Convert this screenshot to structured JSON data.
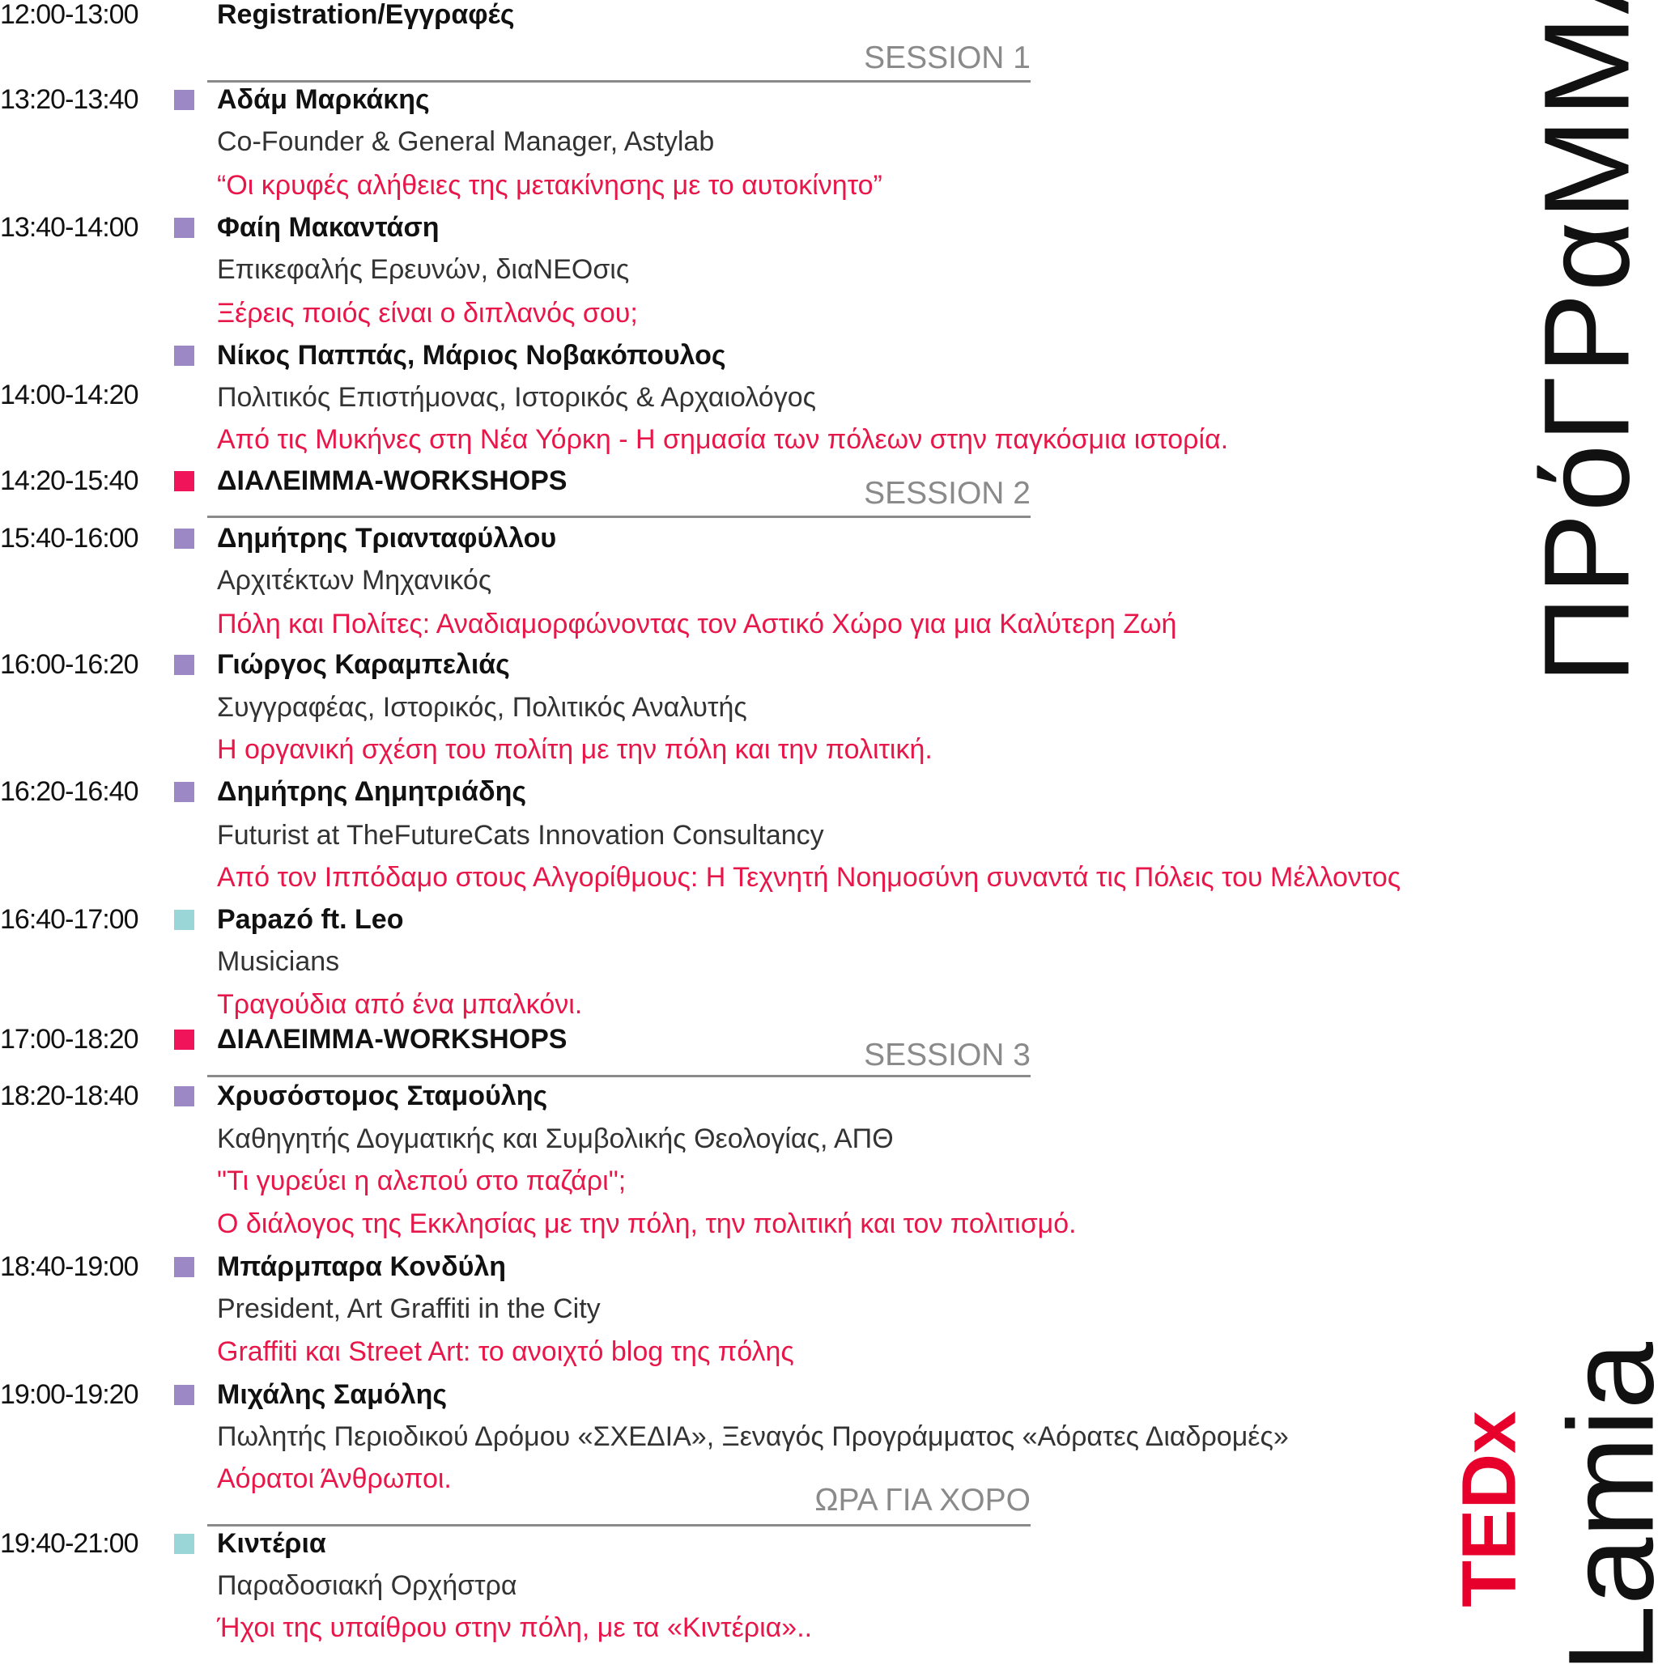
{
  "title": "ΠΡόΓΡαΜΜΑ",
  "logo": {
    "ted": "TEDx",
    "city": "Lamia"
  },
  "colors": {
    "speaker": "#9b88c4",
    "break": "#f0145a",
    "music": "#9ad6d8",
    "talk": "#e8174a"
  },
  "sessions": [
    "SESSION 1",
    "SESSION 2",
    "SESSION 3",
    "ΩΡΑ ΓΙΑ ΧΟΡΟ"
  ],
  "items": [
    {
      "time": "12:00-13:00",
      "name": "Registration/Εγγραφές"
    },
    {
      "time": "13:20-13:40",
      "name": "Αδάμ Μαρκάκης",
      "role": "Co-Founder & General Manager, Astylab",
      "talk": "“Οι κρυφές αλήθειες της μετακίνησης με το αυτοκίνητο”"
    },
    {
      "time": "13:40-14:00",
      "name": "Φαίη Μακαντάση",
      "role": "Επικεφαλής Ερευνών, διαΝΕΟσις",
      "talk": "Ξέρεις ποιός είναι ο διπλανός σου;"
    },
    {
      "time": "14:00-14:20",
      "name": "Νίκος Παππάς, Μάριος Νοβακόπουλος",
      "role": "Πολιτικός Επιστήμονας, Ιστορικός & Αρχαιολόγος",
      "talk": "Από τις Μυκήνες στη Νέα Υόρκη - Η σημασία των πόλεων στην παγκόσμια ιστορία."
    },
    {
      "time": "14:20-15:40",
      "name": "ΔΙΑΛΕΙΜΜΑ-WORKSHOPS"
    },
    {
      "time": "15:40-16:00",
      "name": "Δημήτρης Τριανταφύλλου",
      "role": "Αρχιτέκτων Μηχανικός",
      "talk": "Πόλη και Πολίτες: Αναδιαμορφώνοντας τον Αστικό Χώρο για μια Καλύτερη Ζωή"
    },
    {
      "time": "16:00-16:20",
      "name": "Γιώργος Καραμπελιάς",
      "role": "Συγγραφέας, Ιστορικός, Πολιτικός Αναλυτής",
      "talk": "Η οργανική σχέση του πολίτη με την πόλη και την πολιτική."
    },
    {
      "time": "16:20-16:40",
      "name": "Δημήτρης Δημητριάδης",
      "role": "Futurist at TheFutureCats Innovation Consultancy",
      "talk": "Από τον Ιππόδαμο στους Αλγορίθμους: Η Τεχνητή Νοημοσύνη συναντά τις Πόλεις του Μέλλοντος"
    },
    {
      "time": "16:40-17:00",
      "name": "Papazó ft. Leo",
      "role": "Musicians",
      "talk": "Τραγούδια από ένα μπαλκόνι."
    },
    {
      "time": "17:00-18:20",
      "name": "ΔΙΑΛΕΙΜΜΑ-WORKSHOPS"
    },
    {
      "time": "18:20-18:40",
      "name": "Χρυσόστομος Σταμούλης",
      "role": "Καθηγητής Δογματικής και Συμβολικής Θεολογίας, ΑΠΘ",
      "talk": "\"Τι γυρεύει η αλεπού στο παζάρι\";",
      "talk2": "Ο διάλογος της Εκκλησίας με την πόλη, την πολιτική και τον πολιτισμό."
    },
    {
      "time": "18:40-19:00",
      "name": "Μπάρμπαρα Κονδύλη",
      "role": "President, Art Graffiti in the City",
      "talk": "Graffiti και Street Art: το ανοιχτό blog της πόλης"
    },
    {
      "time": "19:00-19:20",
      "name": "Μιχάλης Σαμόλης",
      "role": "Πωλητής Περιοδικού Δρόμου «ΣΧΕΔΙΑ», Ξεναγός Προγράμματος «Αόρατες Διαδρομές»",
      "talk": "Αόρατοι Άνθρωποι."
    },
    {
      "time": "19:40-21:00",
      "name": "Κιντέρια",
      "role": "Παραδοσιακή Ορχήστρα",
      "talk": "Ήχοι της υπαίθρου στην πόλη, με τα «Κιντέρια».."
    }
  ]
}
